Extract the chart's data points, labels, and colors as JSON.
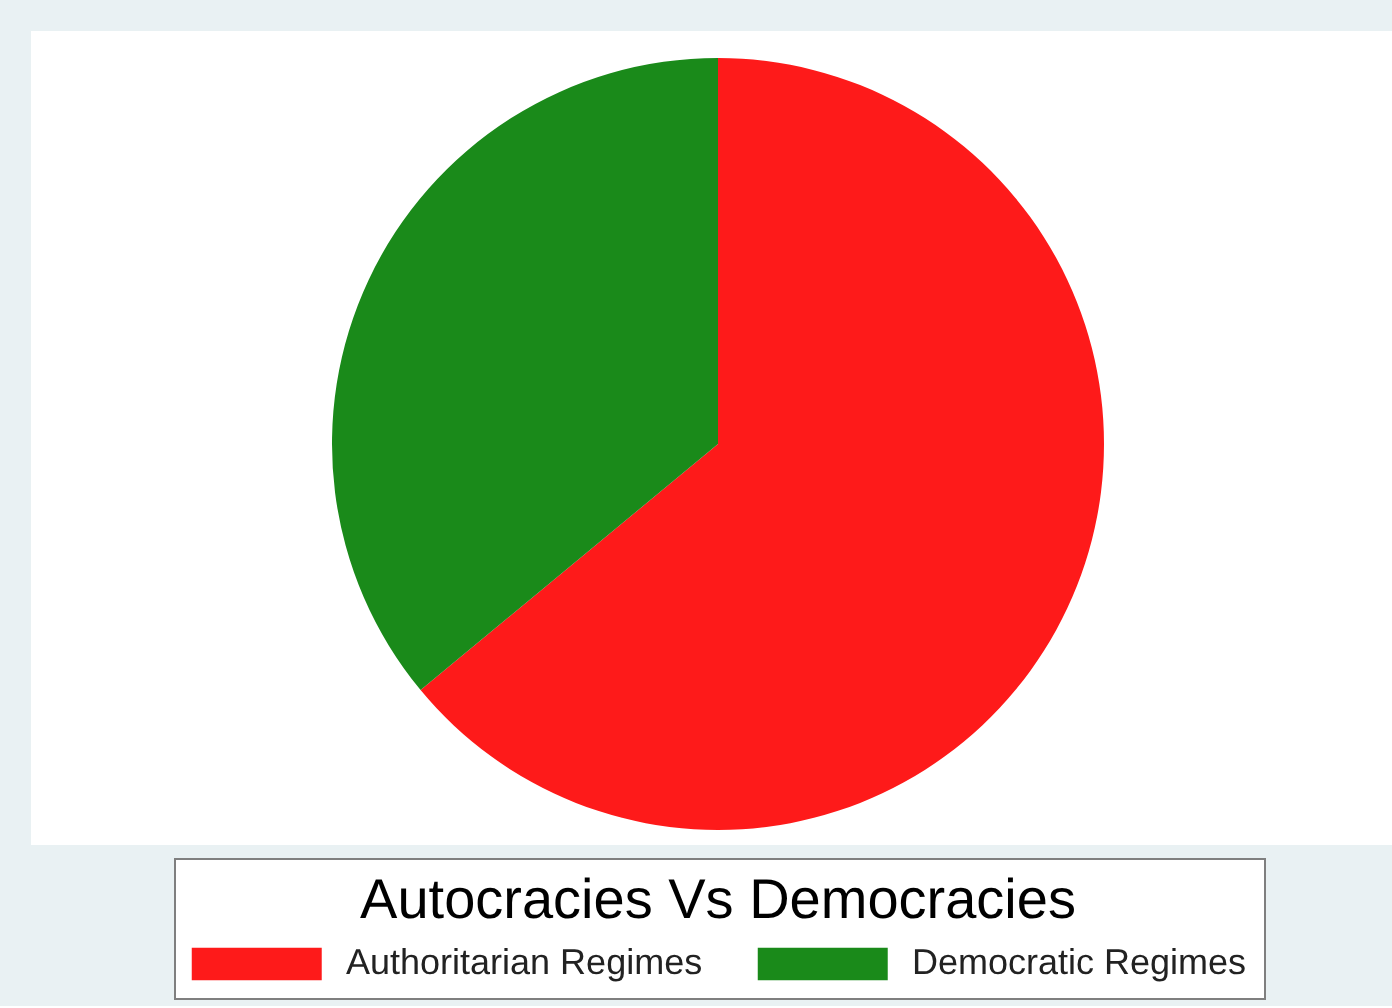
{
  "chart_data": {
    "type": "pie",
    "legend_title": "Autocracies Vs Democracies",
    "categories": [
      "Authoritarian Regimes",
      "Democratic Regimes"
    ],
    "values": [
      64,
      36
    ],
    "colors": [
      "#fe1a1a",
      "#1a8a1a"
    ],
    "legend": "bottom"
  }
}
